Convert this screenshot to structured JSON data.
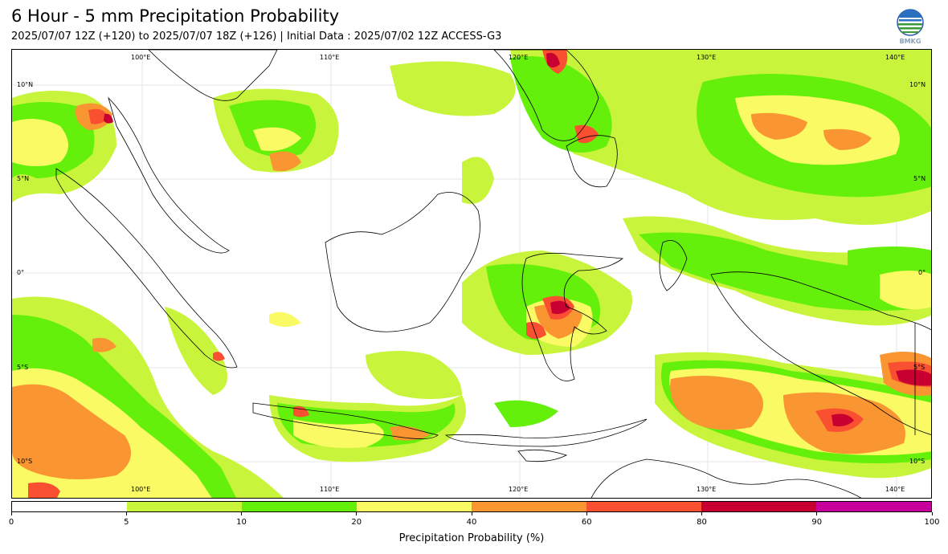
{
  "header": {
    "title": "6 Hour - 5 mm Precipitation Probability",
    "subtitle": "2025/07/07 12Z (+120) to 2025/07/07 18Z (+126) | Initial Data : 2025/07/02 12Z ACCESS-G3",
    "logo_text": "BMKG"
  },
  "map": {
    "lon_labels_top": [
      "100°E",
      "110°E",
      "120°E",
      "130°E",
      "140°E"
    ],
    "lon_labels_bottom": [
      "100°E",
      "110°E",
      "120°E",
      "130°E",
      "140°E"
    ],
    "lat_labels_left": [
      "10°N",
      "5°N",
      "0°",
      "5°S",
      "10°S"
    ],
    "lat_labels_right": [
      "10°N",
      "5°N",
      "0°",
      "5°S",
      "10°S"
    ]
  },
  "legend": {
    "label": "Precipitation Probability (%)",
    "ticks": [
      "0",
      "5",
      "10",
      "20",
      "40",
      "60",
      "80",
      "90",
      "100"
    ],
    "bins": [
      {
        "from": 0,
        "to": 5,
        "color": "#ffffff"
      },
      {
        "from": 5,
        "to": 10,
        "color": "#c8f53c"
      },
      {
        "from": 10,
        "to": 20,
        "color": "#64f00a"
      },
      {
        "from": 20,
        "to": 40,
        "color": "#fafa64"
      },
      {
        "from": 40,
        "to": 60,
        "color": "#fa9632"
      },
      {
        "from": 60,
        "to": 80,
        "color": "#fa5032"
      },
      {
        "from": 80,
        "to": 90,
        "color": "#c80032"
      },
      {
        "from": 90,
        "to": 100,
        "color": "#c8009b"
      }
    ]
  }
}
